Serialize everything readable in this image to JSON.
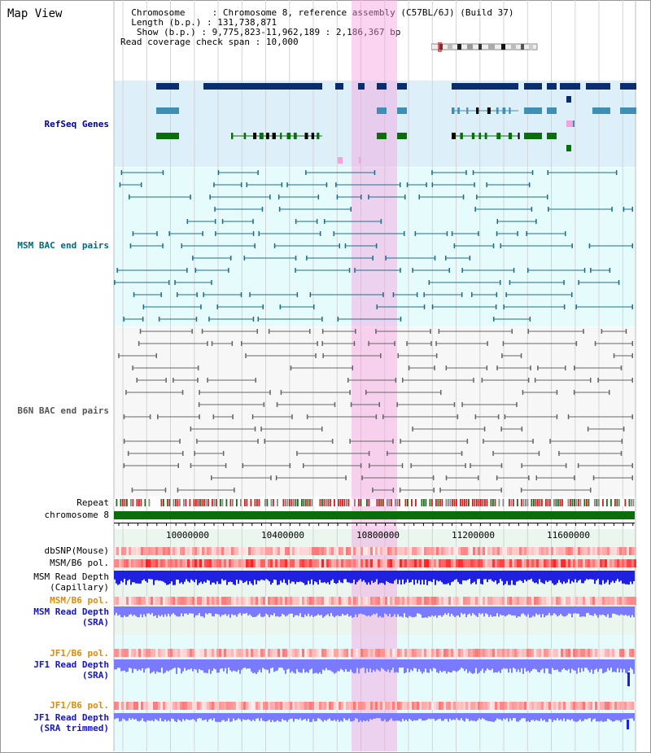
{
  "header": {
    "title": "Map View",
    "chromosome_key": "Chromosome",
    "chromosome_value": "Chromosome 8, reference assembly (C57BL/6J) (Build 37)",
    "length_key": "Length (b.p.)",
    "length_value": "131,738,871",
    "show_key": "Show (b.p.)",
    "show_value": "9,775,823-11,962,189 : 2,186,367 bp",
    "coverage_key": "Read coverage check span",
    "coverage_value": "10,000"
  },
  "tracks": {
    "refseq": "RefSeq Genes",
    "msm_bac": "MSM BAC end pairs",
    "b6n_bac": "B6N BAC end pairs",
    "repeat": "Repeat",
    "chromosome": "chromosome 8",
    "dbsnp": "dbSNP(Mouse)",
    "msm_b6_pol_1": "MSM/B6 pol.",
    "msm_depth_cap_1": "MSM Read Depth",
    "msm_depth_cap_2": "(Capillary)",
    "msm_b6_pol_2": "MSM/B6 pol.",
    "msm_depth_sra_1": "MSM Read Depth",
    "msm_depth_sra_2": "(SRA)",
    "jf1_b6_pol_1": "JF1/B6 pol.",
    "jf1_depth_sra_1": "JF1 Read Depth",
    "jf1_depth_sra_2": "(SRA)",
    "jf1_b6_pol_2": "JF1/B6 pol.",
    "jf1_depth_trim_1": "JF1 Read Depth",
    "jf1_depth_trim_2": "(SRA trimmed)"
  },
  "ruler": {
    "ticks": [
      "10000000",
      "10400000",
      "10800000",
      "11200000",
      "11600000"
    ]
  },
  "colors": {
    "refseq_navy": "#0a2d6e",
    "refseq_blue": "#3f8fb5",
    "refseq_green": "#0a6e0a",
    "msm_teal": "#1d6e8a",
    "b6n_grey": "#666666",
    "chromosome_green": "#0a6e0a",
    "highlight_pink": "#f5a0e1",
    "depth_blue": "#2020e0",
    "depth_light_blue": "#7a7aff"
  }
}
